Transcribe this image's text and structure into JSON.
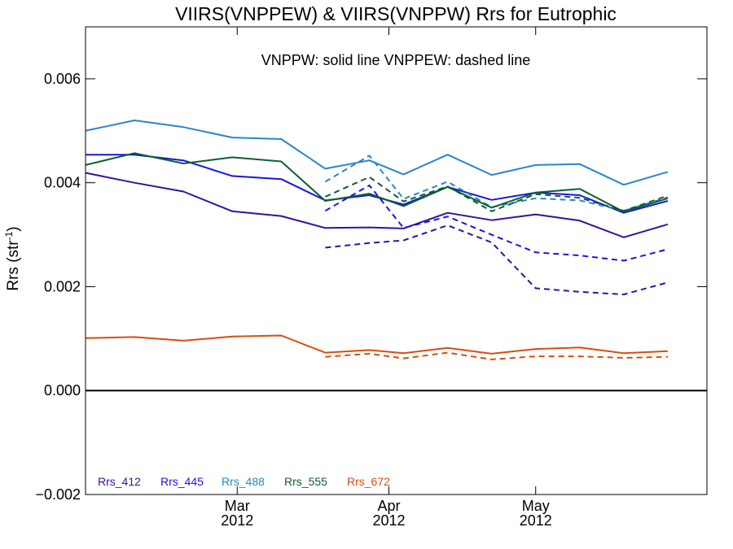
{
  "chart_data": {
    "type": "line",
    "title": "VIIRS(VNPPEW) & VIIRS(VNPPW)  Rrs for Eutrophic",
    "subtitle": "VNPPW: solid line   VNPPEW: dashed line",
    "ylabel": {
      "base": "Rrs (str",
      "sup": "-1",
      "end": ")"
    },
    "ylim": [
      -0.002,
      0.007
    ],
    "yticks": [
      -0.002,
      0.0,
      0.002,
      0.004,
      0.006
    ],
    "ytick_labels": [
      "−0.002",
      "0.000",
      "0.002",
      "0.004",
      "0.006"
    ],
    "xlim": [
      "2012-01-30",
      "2012-06-05"
    ],
    "xticks": [
      {
        "date": "2012-03-01",
        "month": "Mar",
        "year": "2012"
      },
      {
        "date": "2012-04-01",
        "month": "Apr",
        "year": "2012"
      },
      {
        "date": "2012-05-01",
        "month": "May",
        "year": "2012"
      }
    ],
    "zero_line": true,
    "grid": false,
    "legend_placement": "bottom-left",
    "x": [
      "2012-01-30",
      "2012-02-09",
      "2012-02-19",
      "2012-02-29",
      "2012-03-10",
      "2012-03-19",
      "2012-03-28",
      "2012-04-04",
      "2012-04-13",
      "2012-04-22",
      "2012-05-01",
      "2012-05-10",
      "2012-05-19",
      "2012-05-28",
      "2012-06-05"
    ],
    "series": [
      {
        "name": "Rrs_412",
        "color": "#3a0ea0",
        "solid": [
          0.00419,
          0.004,
          0.00383,
          0.00345,
          0.00336,
          0.00313,
          0.00314,
          0.00312,
          0.00342,
          0.00328,
          0.00339,
          0.00327,
          0.00295,
          0.0032,
          null
        ],
        "dashed": [
          null,
          null,
          null,
          null,
          null,
          0.00275,
          0.00284,
          0.00289,
          0.00318,
          0.00285,
          0.00197,
          0.0019,
          0.00185,
          0.00208,
          null
        ]
      },
      {
        "name": "Rrs_445",
        "color": "#1a14e6",
        "solid": [
          0.00454,
          0.00454,
          0.00443,
          0.00413,
          0.00407,
          0.00366,
          0.00376,
          0.00358,
          0.00392,
          0.00367,
          0.00381,
          0.00376,
          0.00342,
          0.00365,
          null
        ],
        "dashed": [
          null,
          null,
          null,
          null,
          null,
          0.00346,
          0.00395,
          0.00313,
          0.00335,
          0.003,
          0.00266,
          0.0026,
          0.0025,
          0.00272,
          null
        ]
      },
      {
        "name": "Rrs_488",
        "color": "#2a85c8",
        "solid": [
          0.005,
          0.0052,
          0.00507,
          0.00487,
          0.00484,
          0.00427,
          0.00443,
          0.00416,
          0.00454,
          0.00415,
          0.00434,
          0.00436,
          0.00396,
          0.00421,
          null
        ],
        "dashed": [
          null,
          null,
          null,
          null,
          null,
          0.00402,
          0.00452,
          0.00369,
          0.00402,
          0.00353,
          0.0037,
          0.00366,
          0.00346,
          0.00372,
          null
        ]
      },
      {
        "name": "Rrs_555",
        "color": "#0d5e2e",
        "solid": [
          0.00434,
          0.00457,
          0.00437,
          0.00449,
          0.00441,
          0.00365,
          0.00379,
          0.00355,
          0.00392,
          0.00352,
          0.00381,
          0.00388,
          0.00344,
          0.0037,
          null
        ],
        "dashed": [
          null,
          null,
          null,
          null,
          null,
          0.00373,
          0.00411,
          0.00364,
          0.00393,
          0.00345,
          0.00378,
          0.00371,
          0.00346,
          0.00375,
          null
        ]
      },
      {
        "name": "Rrs_672",
        "color": "#d84d10",
        "solid": [
          0.00101,
          0.00103,
          0.00096,
          0.00104,
          0.00106,
          0.00073,
          0.00078,
          0.00072,
          0.00082,
          0.00071,
          0.0008,
          0.00083,
          0.00072,
          0.00076,
          null
        ],
        "dashed": [
          null,
          null,
          null,
          null,
          null,
          0.00065,
          0.00071,
          0.00062,
          0.00073,
          0.0006,
          0.00066,
          0.00066,
          0.00063,
          0.00065,
          null
        ]
      }
    ]
  }
}
